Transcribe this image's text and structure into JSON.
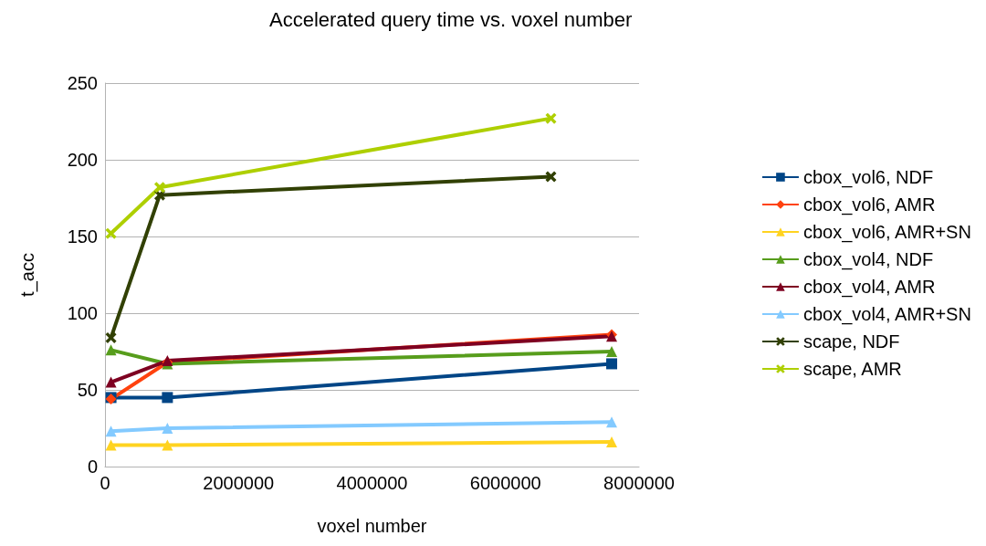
{
  "chart_data": {
    "type": "line",
    "title": "Accelerated query time vs. voxel number",
    "xlabel": "voxel number",
    "ylabel": "t_acc",
    "xlim": [
      0,
      8000000
    ],
    "xticks": [
      0,
      2000000,
      4000000,
      6000000,
      8000000
    ],
    "ylim": [
      0,
      250
    ],
    "yticks": [
      0,
      50,
      100,
      150,
      200,
      250
    ],
    "grid": "y",
    "legend": "right",
    "line_style": "solid",
    "series": [
      {
        "name": "cbox_vol6, NDF",
        "color": "#004586",
        "marker": "square",
        "x": [
          90000,
          935000,
          7590000
        ],
        "values": [
          45,
          45,
          67
        ]
      },
      {
        "name": "cbox_vol6, AMR",
        "color": "#ff420e",
        "marker": "diamond",
        "x": [
          90000,
          935000,
          7590000
        ],
        "values": [
          44,
          68,
          86
        ]
      },
      {
        "name": "cbox_vol6, AMR+SN",
        "color": "#ffd320",
        "marker": "triangle",
        "x": [
          90000,
          935000,
          7590000
        ],
        "values": [
          14,
          14,
          16
        ]
      },
      {
        "name": "cbox_vol4, NDF",
        "color": "#579d1c",
        "marker": "triangle",
        "x": [
          90000,
          935000,
          7590000
        ],
        "values": [
          76,
          67,
          75
        ]
      },
      {
        "name": "cbox_vol4, AMR",
        "color": "#7e0021",
        "marker": "triangle",
        "x": [
          90000,
          935000,
          7590000
        ],
        "values": [
          55,
          69,
          85
        ]
      },
      {
        "name": "cbox_vol4, AMR+SN",
        "color": "#83caff",
        "marker": "triangle",
        "x": [
          90000,
          935000,
          7590000
        ],
        "values": [
          23,
          25,
          29
        ]
      },
      {
        "name": "scape, NDF",
        "color": "#314004",
        "marker": "cross",
        "x": [
          90000,
          820000,
          6680000
        ],
        "values": [
          84,
          177,
          189
        ]
      },
      {
        "name": "scape, AMR",
        "color": "#aecf00",
        "marker": "cross",
        "x": [
          90000,
          820000,
          6680000
        ],
        "values": [
          152,
          182,
          227
        ]
      }
    ]
  }
}
